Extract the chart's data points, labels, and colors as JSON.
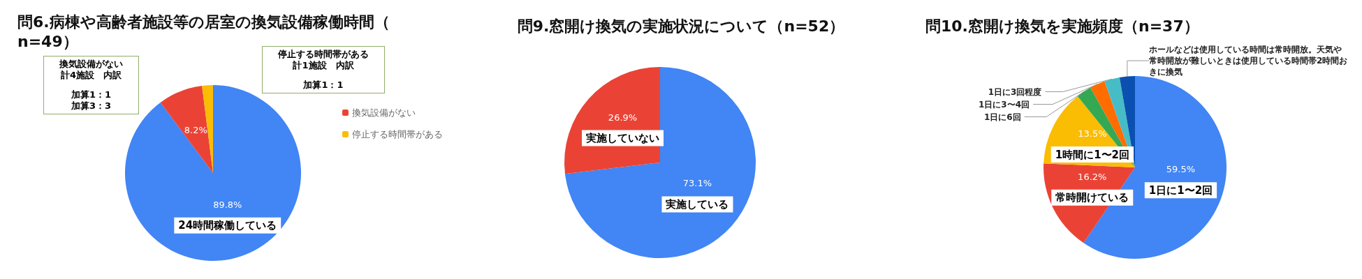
{
  "chart_data": [
    {
      "type": "pie",
      "title": "問6.病棟や高齢者施設等の居室の換気設備稼働時間（n=49）",
      "categories": [
        "24時間稼働している",
        "換気設備がない",
        "停止する時間帯がある"
      ],
      "values": [
        89.8,
        8.2,
        2.0
      ],
      "colors": [
        "#4285f4",
        "#ea4335",
        "#fbbc04"
      ],
      "value_labels": [
        "89.8%",
        "8.2%",
        null
      ],
      "legend": "right",
      "annotations": [
        "換気設備がない",
        "計4施設　内訳",
        "加算1：1",
        "加算3：3",
        "停止する時間帯がある",
        "計1施設　内訳",
        "加算1：1"
      ]
    },
    {
      "type": "pie",
      "title": "問9.窓開け換気の実施状況について（n=52）",
      "categories": [
        "実施している",
        "実施していない"
      ],
      "values": [
        73.1,
        26.9
      ],
      "colors": [
        "#4285f4",
        "#ea4335"
      ],
      "value_labels": [
        "73.1%",
        "26.9%"
      ]
    },
    {
      "type": "pie",
      "title": "問10.窓開け換気を実施頻度（n=37）",
      "categories": [
        "1日に1〜2回",
        "常時開けている",
        "1時間に1〜2回",
        "1日に6回",
        "1日に3〜4回",
        "1日に3回程度",
        "ホールなどは使用している時間は常時開放。天気や常時開放が難しいときは使用している時間帯2時間おきに換気"
      ],
      "values": [
        59.5,
        16.2,
        13.5,
        2.7,
        2.7,
        2.7,
        2.7
      ],
      "colors": [
        "#4285f4",
        "#ea4335",
        "#fbbc04",
        "#34a853",
        "#ff6d01",
        "#46bdc6",
        "#0b4fb0"
      ],
      "value_labels": [
        "59.5%",
        "16.2%",
        "13.5%",
        null,
        null,
        null,
        null
      ]
    }
  ]
}
